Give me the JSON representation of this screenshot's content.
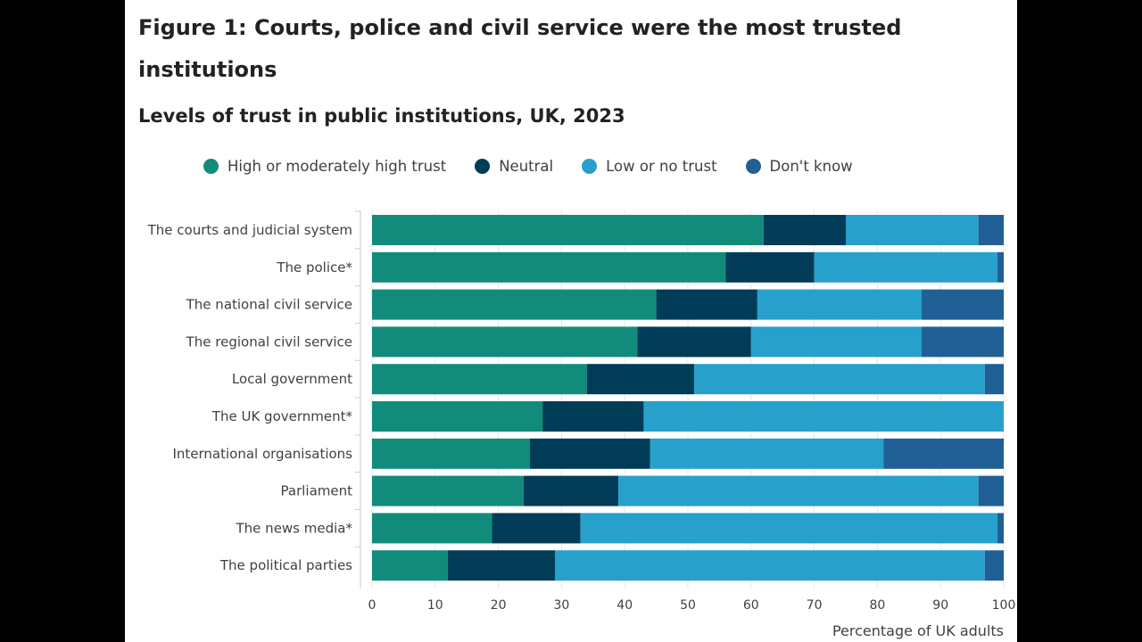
{
  "chart_data": {
    "type": "bar",
    "orientation": "horizontal",
    "stacked": true,
    "title": "Figure 1: Courts, police and civil service were the most trusted institutions",
    "subtitle": "Levels of trust in public institutions, UK, 2023",
    "xlabel": "Percentage of UK adults",
    "ylabel": "",
    "xlim": [
      0,
      100
    ],
    "xticks": [
      "0",
      "10",
      "20",
      "30",
      "40",
      "50",
      "60",
      "70",
      "80",
      "90",
      "100"
    ],
    "grid": true,
    "legend_position": "top",
    "categories": [
      "The courts and judicial system",
      "The police*",
      "The national civil service",
      "The regional civil service",
      "Local government",
      "The UK government*",
      "International organisations",
      "Parliament",
      "The news media*",
      "The political parties"
    ],
    "series": [
      {
        "name": "High or moderately high trust",
        "color": "#118c7b",
        "values": [
          62,
          56,
          45,
          42,
          34,
          27,
          25,
          24,
          19,
          12
        ]
      },
      {
        "name": "Neutral",
        "color": "#003c57",
        "values": [
          13,
          14,
          16,
          18,
          17,
          16,
          19,
          15,
          14,
          17
        ]
      },
      {
        "name": "Low or no trust",
        "color": "#27a0cc",
        "values": [
          21,
          29,
          26,
          27,
          46,
          57,
          37,
          57,
          66,
          68
        ]
      },
      {
        "name": "Don't know",
        "color": "#206095",
        "values": [
          4,
          1,
          13,
          13,
          3,
          0,
          19,
          4,
          1,
          3
        ]
      }
    ]
  }
}
